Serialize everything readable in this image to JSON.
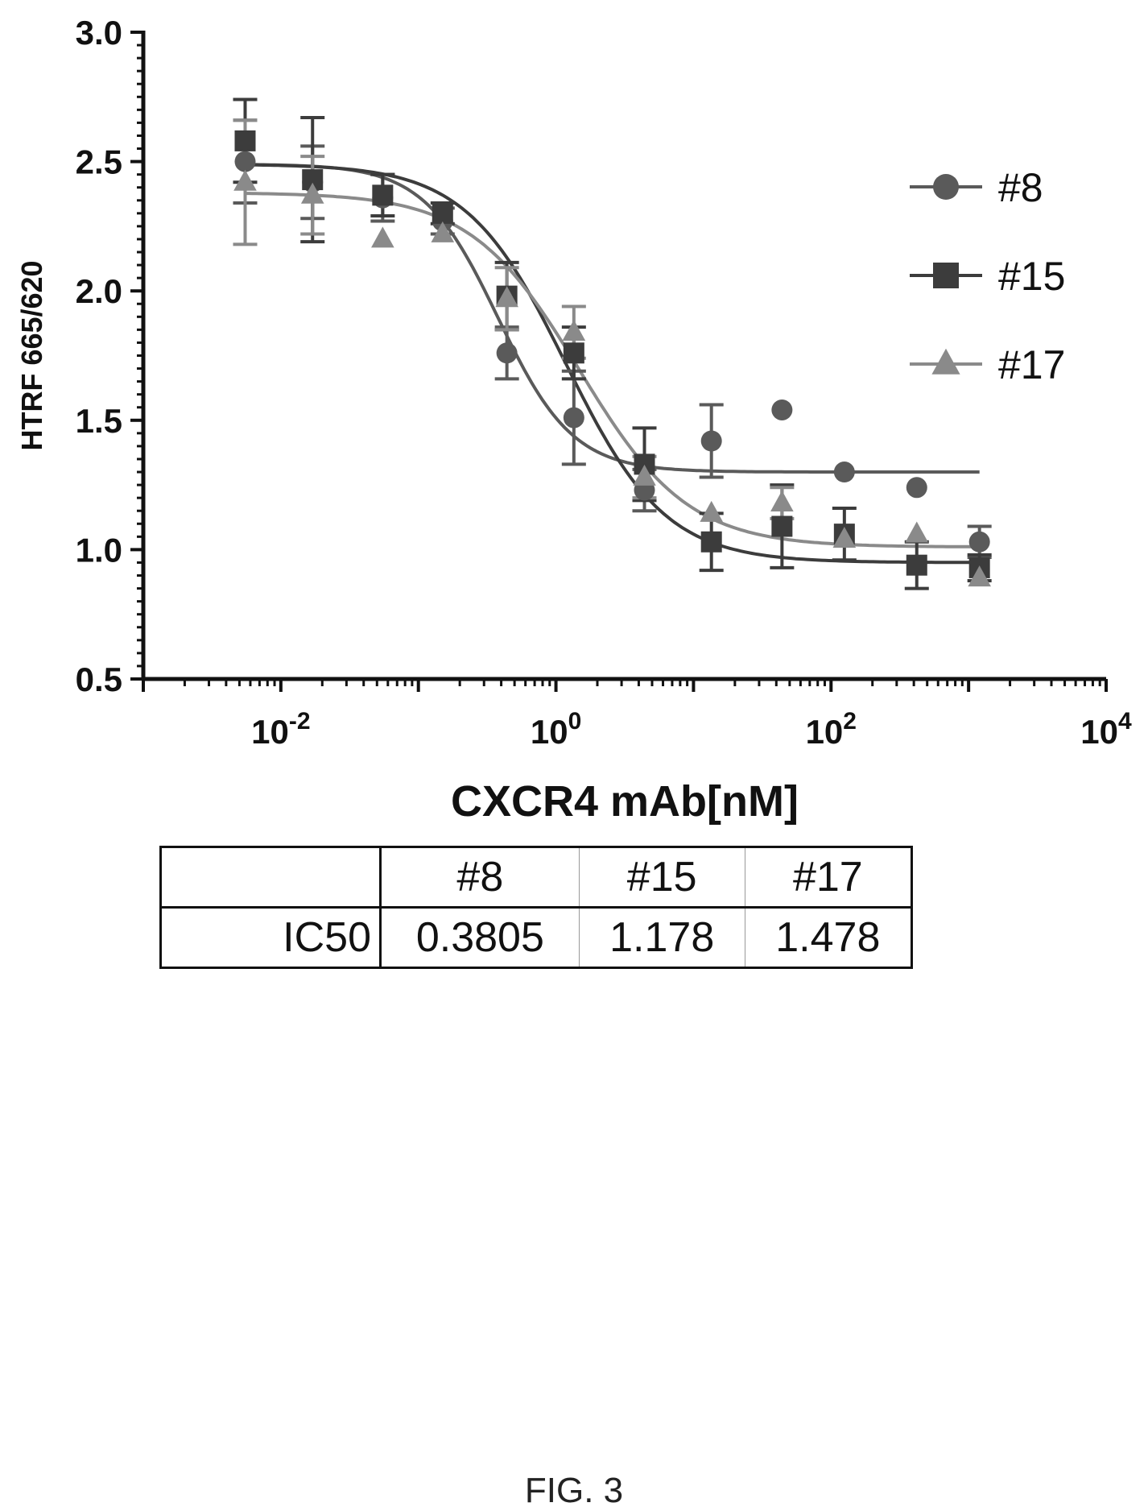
{
  "chart_data": {
    "type": "scatter",
    "xlabel": "CXCR4 mAb[nM]",
    "ylabel": "HTRF 665/620",
    "xscale": "log10",
    "xlim": [
      0.001,
      10000
    ],
    "ylim": [
      0.5,
      3.0
    ],
    "x_tick_labels": [
      {
        "base": "10",
        "exp": "-2",
        "value": 0.01
      },
      {
        "base": "10",
        "exp": "0",
        "value": 1
      },
      {
        "base": "10",
        "exp": "2",
        "value": 100
      },
      {
        "base": "10",
        "exp": "4",
        "value": 10000
      }
    ],
    "y_tick_labels": [
      "0.5",
      "1.0",
      "1.5",
      "2.0",
      "2.5",
      "3.0"
    ],
    "legend_position": "top-right",
    "series": [
      {
        "name": "#8",
        "marker": "circle",
        "color": "#5a5a5a",
        "fit": {
          "top": 2.49,
          "bottom": 1.3,
          "ic50": 0.3805,
          "hill": 1.6
        },
        "points": [
          {
            "x": 0.0055,
            "y": 2.5,
            "err": 0.16
          },
          {
            "x": 0.017,
            "y": 2.42,
            "err": 0.14
          },
          {
            "x": 0.055,
            "y": 2.36,
            "err": 0.09
          },
          {
            "x": 0.15,
            "y": 2.27,
            "err": 0.05
          },
          {
            "x": 0.44,
            "y": 1.76,
            "err": 0.1
          },
          {
            "x": 1.35,
            "y": 1.51,
            "err": 0.18
          },
          {
            "x": 4.4,
            "y": 1.23,
            "err": 0.08
          },
          {
            "x": 13.5,
            "y": 1.42,
            "err": 0.14
          },
          {
            "x": 44,
            "y": 1.54,
            "err": 0
          },
          {
            "x": 125,
            "y": 1.3,
            "err": 0
          },
          {
            "x": 420,
            "y": 1.24,
            "err": 0
          },
          {
            "x": 1200,
            "y": 1.03,
            "err": 0.06
          }
        ]
      },
      {
        "name": "#15",
        "marker": "square",
        "color": "#3c3c3c",
        "fit": {
          "top": 2.49,
          "bottom": 0.95,
          "ic50": 1.178,
          "hill": 1.2
        },
        "points": [
          {
            "x": 0.0055,
            "y": 2.58,
            "err": 0.16
          },
          {
            "x": 0.017,
            "y": 2.43,
            "err": 0.24
          },
          {
            "x": 0.055,
            "y": 2.37,
            "err": 0.08
          },
          {
            "x": 0.15,
            "y": 2.3,
            "err": 0.04
          },
          {
            "x": 0.44,
            "y": 1.98,
            "err": 0.13
          },
          {
            "x": 1.35,
            "y": 1.76,
            "err": 0.1
          },
          {
            "x": 4.4,
            "y": 1.33,
            "err": 0.14
          },
          {
            "x": 13.5,
            "y": 1.03,
            "err": 0.11
          },
          {
            "x": 44,
            "y": 1.09,
            "err": 0.16
          },
          {
            "x": 125,
            "y": 1.06,
            "err": 0.1
          },
          {
            "x": 420,
            "y": 0.94,
            "err": 0.09
          },
          {
            "x": 1200,
            "y": 0.93,
            "err": 0.05
          }
        ]
      },
      {
        "name": "#17",
        "marker": "triangle",
        "color": "#8a8a8a",
        "fit": {
          "top": 2.38,
          "bottom": 1.01,
          "ic50": 1.478,
          "hill": 1.1
        },
        "points": [
          {
            "x": 0.0055,
            "y": 2.42,
            "err": 0.24
          },
          {
            "x": 0.017,
            "y": 2.37,
            "err": 0.15
          },
          {
            "x": 0.055,
            "y": 2.2,
            "err": 0
          },
          {
            "x": 0.15,
            "y": 2.22,
            "err": 0
          },
          {
            "x": 0.44,
            "y": 1.97,
            "err": 0.12
          },
          {
            "x": 1.35,
            "y": 1.84,
            "err": 0.1
          },
          {
            "x": 4.4,
            "y": 1.28,
            "err": 0.08
          },
          {
            "x": 13.5,
            "y": 1.14,
            "err": 0
          },
          {
            "x": 44,
            "y": 1.18,
            "err": 0.06
          },
          {
            "x": 125,
            "y": 1.04,
            "err": 0
          },
          {
            "x": 420,
            "y": 1.06,
            "err": 0
          },
          {
            "x": 1200,
            "y": 0.89,
            "err": 0
          }
        ]
      }
    ]
  },
  "table": {
    "header": [
      "",
      "#8",
      "#15",
      "#17"
    ],
    "row_label": "IC50",
    "values": [
      "0.3805",
      "1.178",
      "1.478"
    ]
  },
  "caption": "FIG. 3"
}
